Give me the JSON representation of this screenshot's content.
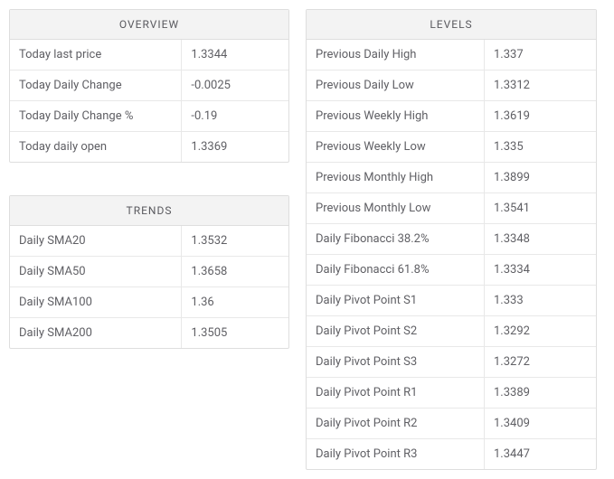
{
  "overview": {
    "title": "OVERVIEW",
    "rows": [
      {
        "label": "Today last price",
        "value": "1.3344"
      },
      {
        "label": "Today Daily Change",
        "value": "-0.0025"
      },
      {
        "label": "Today Daily Change %",
        "value": "-0.19"
      },
      {
        "label": "Today daily open",
        "value": "1.3369"
      }
    ]
  },
  "trends": {
    "title": "TRENDS",
    "rows": [
      {
        "label": "Daily SMA20",
        "value": "1.3532"
      },
      {
        "label": "Daily SMA50",
        "value": "1.3658"
      },
      {
        "label": "Daily SMA100",
        "value": "1.36"
      },
      {
        "label": "Daily SMA200",
        "value": "1.3505"
      }
    ]
  },
  "levels": {
    "title": "LEVELS",
    "rows": [
      {
        "label": "Previous Daily High",
        "value": "1.337"
      },
      {
        "label": "Previous Daily Low",
        "value": "1.3312"
      },
      {
        "label": "Previous Weekly High",
        "value": "1.3619"
      },
      {
        "label": "Previous Weekly Low",
        "value": "1.335"
      },
      {
        "label": "Previous Monthly High",
        "value": "1.3899"
      },
      {
        "label": "Previous Monthly Low",
        "value": "1.3541"
      },
      {
        "label": "Daily Fibonacci 38.2%",
        "value": "1.3348"
      },
      {
        "label": "Daily Fibonacci 61.8%",
        "value": "1.3334"
      },
      {
        "label": "Daily Pivot Point S1",
        "value": "1.333"
      },
      {
        "label": "Daily Pivot Point S2",
        "value": "1.3292"
      },
      {
        "label": "Daily Pivot Point S3",
        "value": "1.3272"
      },
      {
        "label": "Daily Pivot Point R1",
        "value": "1.3389"
      },
      {
        "label": "Daily Pivot Point R2",
        "value": "1.3409"
      },
      {
        "label": "Daily Pivot Point R3",
        "value": "1.3447"
      }
    ]
  },
  "colors": {
    "border": "#dedede",
    "row_border": "#e8e8e8",
    "header_bg": "#f3f3f3",
    "text": "#5f5f64",
    "background": "#ffffff"
  }
}
